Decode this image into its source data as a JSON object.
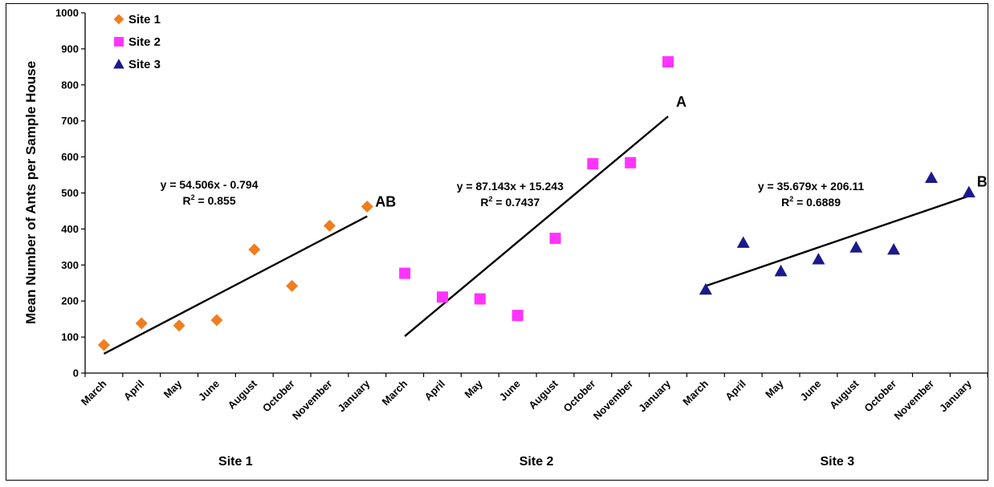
{
  "chart_data": {
    "type": "scatter",
    "ylabel": "Mean Number of Ants per Sample House",
    "ylim": [
      0,
      1000
    ],
    "yticks": [
      0,
      100,
      200,
      300,
      400,
      500,
      600,
      700,
      800,
      900,
      1000
    ],
    "categories": [
      "March",
      "April",
      "May",
      "June",
      "August",
      "October",
      "November",
      "January"
    ],
    "legend": {
      "placement": "top-left",
      "entries": [
        "Site 1",
        "Site 2",
        "Site 3"
      ]
    },
    "grid": false,
    "series": [
      {
        "name": "Site 1",
        "group_label": "Site 1",
        "marker": "diamond",
        "color": "#F07D1E",
        "values": [
          78,
          138,
          132,
          147,
          343,
          242,
          409,
          462
        ],
        "trendline": {
          "slope": 54.506,
          "intercept": -0.794
        },
        "equation": "y = 54.506x - 0.794",
        "r2_prefix": "R",
        "r2_exponent": "2",
        "r2_value": " = 0.855",
        "letter": "AB"
      },
      {
        "name": "Site 2",
        "group_label": "Site 2",
        "marker": "square",
        "color": "#FF33FF",
        "values": [
          277,
          211,
          206,
          160,
          374,
          581,
          584,
          864
        ],
        "trendline": {
          "slope": 87.143,
          "intercept": 15.243
        },
        "equation": "y = 87.143x + 15.243",
        "r2_prefix": "R",
        "r2_exponent": "2",
        "r2_value": " = 0.7437",
        "letter": "A"
      },
      {
        "name": "Site 3",
        "group_label": "Site 3",
        "marker": "triangle",
        "color": "#1A1A8C",
        "values": [
          232,
          362,
          283,
          316,
          349,
          343,
          542,
          502
        ],
        "trendline": {
          "slope": 35.679,
          "intercept": 206.11
        },
        "equation": "y = 35.679x + 206.11",
        "r2_prefix": "R",
        "r2_exponent": "2",
        "r2_value": " = 0.6889",
        "letter": "B"
      }
    ]
  }
}
